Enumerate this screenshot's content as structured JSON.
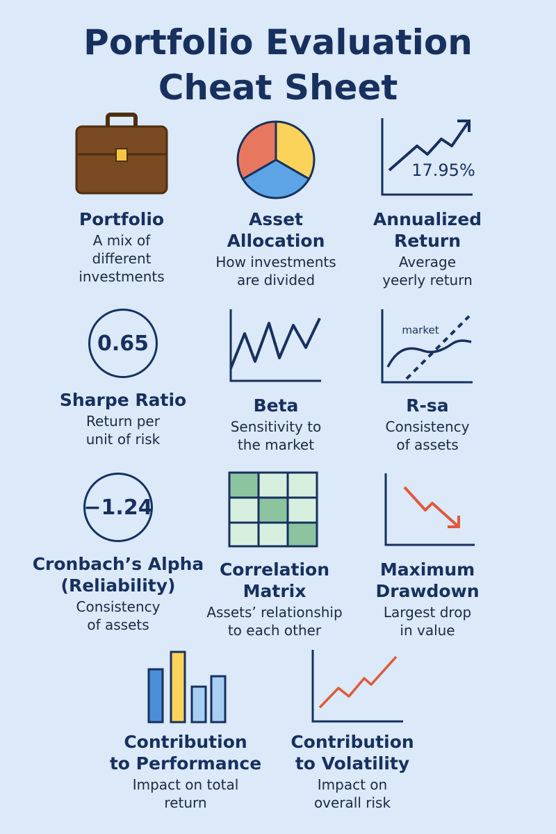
{
  "title": {
    "line1": "Portfolio Evaluation",
    "line2": "Cheat Sheet"
  },
  "cards": [
    {
      "name_lines": [
        "Portfolio"
      ],
      "desc_lines": [
        "A mix of",
        "different",
        "investments"
      ],
      "icon": "briefcase-icon"
    },
    {
      "name_lines": [
        "Asset",
        "Allocation"
      ],
      "desc_lines": [
        "How investments",
        "are divided"
      ],
      "icon": "pie-chart-icon"
    },
    {
      "name_lines": [
        "Annualized",
        "Return"
      ],
      "desc_lines": [
        "Average",
        "yeerly return"
      ],
      "icon": "rising-chart-icon",
      "value": "17.95%"
    },
    {
      "name_lines": [
        "Sharpe Ratio"
      ],
      "desc_lines": [
        "Return per",
        "unit of risk"
      ],
      "icon": "value-circle-icon",
      "value": "0.65"
    },
    {
      "name_lines": [
        "Beta"
      ],
      "desc_lines": [
        "Sensitivity to",
        "the market"
      ],
      "icon": "zigzag-chart-icon"
    },
    {
      "name_lines": [
        "R-sa"
      ],
      "desc_lines": [
        "Consistency",
        "of assets"
      ],
      "icon": "market-regression-icon",
      "value": "market"
    },
    {
      "name_lines": [
        "Cronbach’s Alpha",
        "(Reliability)"
      ],
      "desc_lines": [
        "Consistency",
        "of assets"
      ],
      "icon": "value-circle-icon",
      "value": "−1.24"
    },
    {
      "name_lines": [
        "Correlation",
        "Matrix"
      ],
      "desc_lines": [
        "Assets’ relationship",
        "to each other"
      ],
      "icon": "matrix-grid-icon"
    },
    {
      "name_lines": [
        "Maximum",
        "Drawdown"
      ],
      "desc_lines": [
        "Largest drop",
        "in value"
      ],
      "icon": "falling-chart-icon"
    },
    {
      "name_lines": [
        "Contribution",
        "to Performance"
      ],
      "desc_lines": [
        "Impact on total",
        "return"
      ],
      "icon": "bar-chart-icon"
    },
    {
      "name_lines": [
        "Contribution",
        "to Volatility"
      ],
      "desc_lines": [
        "Impact on",
        "overall risk"
      ],
      "icon": "volatility-line-icon"
    }
  ],
  "colors": {
    "background": "#dbe9f8",
    "navy": "#17305e",
    "briefcase": "#7a4a22",
    "pie_red": "#e87760",
    "pie_yellow": "#fbd35a",
    "pie_blue": "#5ca4e6",
    "matrix_dark": "#8cc4a0",
    "matrix_light": "#d7efdf",
    "accent_red": "#e0583c",
    "bar_blue": "#4a90d9",
    "bar_yellow": "#fbd35a",
    "bar_light": "#a8cff2"
  }
}
